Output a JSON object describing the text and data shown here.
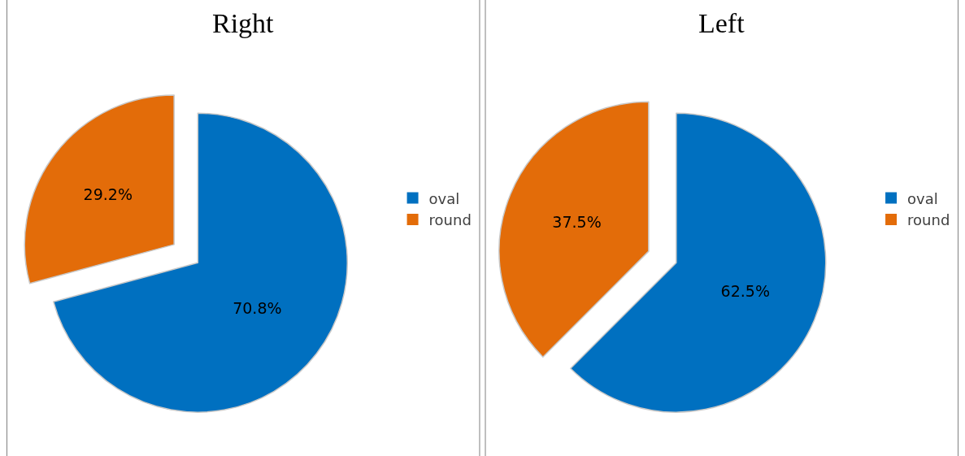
{
  "chart_data": [
    {
      "type": "pie",
      "title": "Right",
      "categories": [
        "oval",
        "round"
      ],
      "values": [
        70.8,
        29.2
      ],
      "colors": [
        "#0070c0",
        "#e36c09"
      ],
      "value_labels": [
        "70.8%",
        "29.2%"
      ],
      "legend": "right"
    },
    {
      "type": "pie",
      "title": "Left",
      "categories": [
        "oval",
        "round"
      ],
      "values": [
        62.5,
        37.5
      ],
      "colors": [
        "#0070c0",
        "#e36c09"
      ],
      "value_labels": [
        "62.5%",
        "37.5%"
      ],
      "legend": "right"
    }
  ]
}
